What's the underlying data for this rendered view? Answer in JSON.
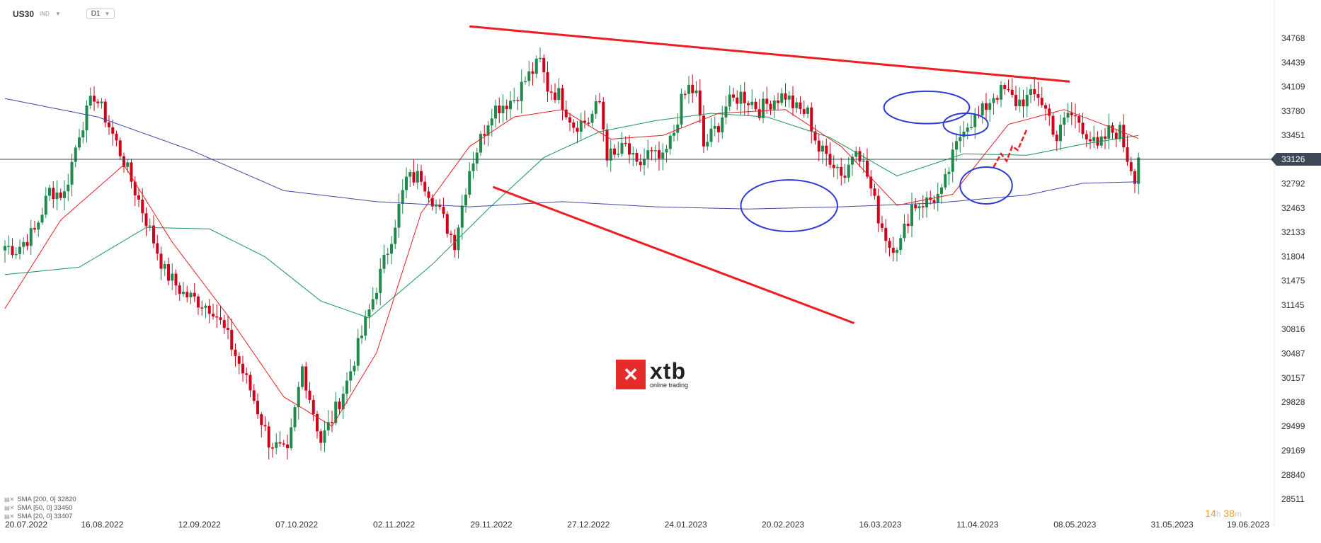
{
  "header": {
    "symbol": "US30",
    "instrument_type": "IND",
    "timeframe": "D1"
  },
  "legend": [
    {
      "label": "SMA [200, 0] 32820",
      "color": "#3f48a8"
    },
    {
      "label": "SMA [50, 0] 33450",
      "color": "#17955b"
    },
    {
      "label": "SMA [20, 0] 33407",
      "color": "#e31e24"
    }
  ],
  "timer": {
    "h": "14",
    "h_unit": "h",
    "m": "38",
    "m_unit": "m"
  },
  "logo": {
    "name": "xtb",
    "tagline": "online trading"
  },
  "chart_data": {
    "type": "candlestick",
    "ylim": [
      28511,
      35000
    ],
    "y_ticks": [
      34768,
      34439,
      34109,
      33780,
      33451,
      33126,
      32792,
      32463,
      32133,
      31804,
      31475,
      31145,
      30816,
      30487,
      30157,
      29828,
      29499,
      29169,
      28840,
      28511
    ],
    "x_labels": [
      "20.07.2022",
      "16.08.2022",
      "12.09.2022",
      "07.10.2022",
      "02.11.2022",
      "29.11.2022",
      "27.12.2022",
      "24.01.2023",
      "20.02.2023",
      "16.03.2023",
      "11.04.2023",
      "08.05.2023",
      "31.05.2023",
      "19.06.2023"
    ],
    "current_price": "33126",
    "anchors": [
      [
        0,
        31950
      ],
      [
        3,
        31900
      ],
      [
        8,
        32150
      ],
      [
        12,
        32700
      ],
      [
        16,
        32650
      ],
      [
        20,
        33500
      ],
      [
        24,
        34000
      ],
      [
        27,
        33700
      ],
      [
        32,
        33100
      ],
      [
        38,
        32300
      ],
      [
        43,
        31600
      ],
      [
        48,
        31300
      ],
      [
        52,
        31200
      ],
      [
        56,
        31100
      ],
      [
        60,
        30700
      ],
      [
        66,
        30000
      ],
      [
        71,
        29300
      ],
      [
        76,
        29100
      ],
      [
        80,
        30300
      ],
      [
        85,
        29300
      ],
      [
        88,
        29600
      ],
      [
        92,
        30100
      ],
      [
        97,
        30900
      ],
      [
        103,
        31900
      ],
      [
        108,
        32850
      ],
      [
        112,
        32900
      ],
      [
        117,
        32400
      ],
      [
        121,
        32000
      ],
      [
        125,
        33000
      ],
      [
        131,
        33800
      ],
      [
        137,
        33950
      ],
      [
        140,
        34200
      ],
      [
        144,
        34450
      ],
      [
        146,
        34100
      ],
      [
        149,
        34000
      ],
      [
        153,
        33600
      ],
      [
        157,
        33650
      ],
      [
        160,
        33900
      ],
      [
        162,
        33200
      ],
      [
        164,
        33150
      ],
      [
        167,
        33300
      ],
      [
        170,
        33000
      ],
      [
        173,
        33200
      ],
      [
        177,
        33100
      ],
      [
        180,
        33500
      ],
      [
        182,
        33900
      ],
      [
        184,
        34100
      ],
      [
        186,
        34000
      ],
      [
        188,
        33300
      ],
      [
        192,
        33600
      ],
      [
        194,
        33850
      ],
      [
        198,
        34000
      ],
      [
        201,
        33900
      ],
      [
        203,
        33800
      ],
      [
        207,
        33950
      ],
      [
        210,
        34000
      ],
      [
        213,
        33800
      ],
      [
        216,
        33750
      ],
      [
        219,
        33250
      ],
      [
        222,
        33150
      ],
      [
        226,
        32900
      ],
      [
        229,
        33350
      ],
      [
        232,
        32900
      ],
      [
        235,
        32350
      ],
      [
        238,
        31950
      ],
      [
        241,
        32000
      ],
      [
        244,
        32500
      ],
      [
        248,
        32550
      ],
      [
        252,
        32650
      ],
      [
        255,
        33150
      ],
      [
        258,
        33600
      ],
      [
        262,
        33700
      ],
      [
        266,
        34000
      ],
      [
        269,
        34050
      ],
      [
        272,
        33900
      ],
      [
        275,
        33950
      ],
      [
        278,
        34000
      ],
      [
        281,
        33700
      ],
      [
        283,
        33400
      ],
      [
        286,
        33750
      ],
      [
        289,
        33650
      ],
      [
        292,
        33400
      ],
      [
        294,
        33250
      ],
      [
        297,
        33500
      ],
      [
        300,
        33500
      ],
      [
        302,
        33150
      ],
      [
        304,
        32900
      ],
      [
        305,
        33150
      ]
    ],
    "sma_anchors": {
      "sma200": [
        [
          0,
          33950
        ],
        [
          25,
          33700
        ],
        [
          50,
          33250
        ],
        [
          75,
          32700
        ],
        [
          100,
          32550
        ],
        [
          125,
          32480
        ],
        [
          150,
          32550
        ],
        [
          175,
          32480
        ],
        [
          200,
          32450
        ],
        [
          225,
          32480
        ],
        [
          250,
          32530
        ],
        [
          275,
          32640
        ],
        [
          290,
          32800
        ],
        [
          305,
          32820
        ]
      ],
      "sma50": [
        [
          0,
          31560
        ],
        [
          20,
          31660
        ],
        [
          38,
          32200
        ],
        [
          55,
          32180
        ],
        [
          70,
          31800
        ],
        [
          85,
          31200
        ],
        [
          98,
          30970
        ],
        [
          115,
          31700
        ],
        [
          130,
          32450
        ],
        [
          145,
          33150
        ],
        [
          160,
          33500
        ],
        [
          175,
          33650
        ],
        [
          190,
          33750
        ],
        [
          205,
          33700
        ],
        [
          222,
          33420
        ],
        [
          240,
          32900
        ],
        [
          258,
          33200
        ],
        [
          275,
          33180
        ],
        [
          290,
          33330
        ],
        [
          305,
          33450
        ]
      ],
      "sma20": [
        [
          0,
          31100
        ],
        [
          15,
          32300
        ],
        [
          32,
          33050
        ],
        [
          45,
          32000
        ],
        [
          60,
          31000
        ],
        [
          75,
          29900
        ],
        [
          88,
          29500
        ],
        [
          100,
          30500
        ],
        [
          112,
          32400
        ],
        [
          125,
          33300
        ],
        [
          137,
          33700
        ],
        [
          150,
          33800
        ],
        [
          163,
          33400
        ],
        [
          177,
          33450
        ],
        [
          192,
          33750
        ],
        [
          210,
          33800
        ],
        [
          225,
          33300
        ],
        [
          240,
          32500
        ],
        [
          255,
          32650
        ],
        [
          270,
          33600
        ],
        [
          285,
          33800
        ],
        [
          298,
          33550
        ],
        [
          305,
          33407
        ]
      ]
    },
    "pattern_lines": [
      {
        "from": [
          125.0,
          34930
        ],
        "to": [
          286.5,
          34180
        ]
      },
      {
        "from": [
          131.3,
          32750
        ],
        "to": [
          228.5,
          30900
        ]
      }
    ],
    "circles": [
      {
        "center": [
          211.0,
          32495
        ],
        "r": [
          13.0,
          350
        ]
      },
      {
        "center": [
          248.0,
          33830
        ],
        "r": [
          11.5,
          220
        ]
      },
      {
        "center": [
          258.5,
          33600
        ],
        "r": [
          6.0,
          150
        ]
      },
      {
        "center": [
          264.0,
          32770
        ],
        "r": [
          7.0,
          250
        ]
      }
    ],
    "projection": [
      [
        266.0,
        33020
      ],
      [
        268.0,
        33200
      ],
      [
        269.5,
        33100
      ],
      [
        271.0,
        33300
      ],
      [
        272.5,
        33250
      ],
      [
        275.0,
        33540
      ]
    ]
  }
}
